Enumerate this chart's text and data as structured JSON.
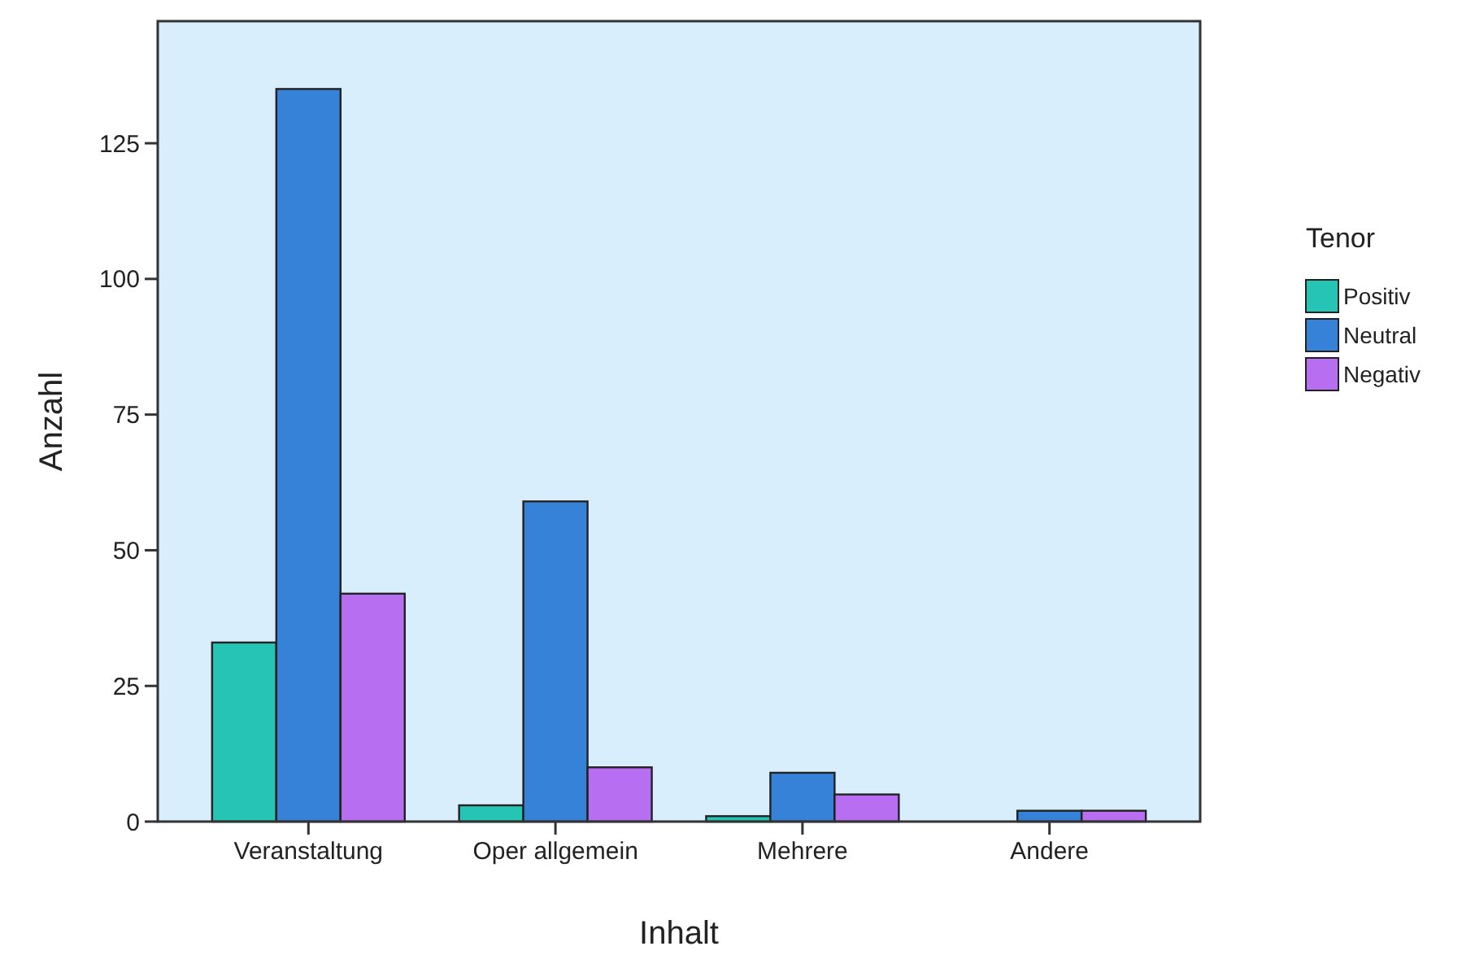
{
  "chart_data": {
    "type": "bar",
    "xlabel": "Inhalt",
    "ylabel": "Anzahl",
    "legend_title": "Tenor",
    "legend": "right",
    "categories": [
      "Veranstaltung",
      "Oper allgemein",
      "Mehrere",
      "Andere"
    ],
    "series": [
      {
        "name": "Positiv",
        "color": "#26c4b4",
        "values": [
          33,
          3,
          1,
          0
        ]
      },
      {
        "name": "Neutral",
        "color": "#3582d8",
        "values": [
          135,
          59,
          9,
          2
        ]
      },
      {
        "name": "Negativ",
        "color": "#b86ef0",
        "values": [
          42,
          10,
          5,
          2
        ]
      }
    ],
    "ylim": [
      0,
      147.5
    ],
    "yticks": [
      0,
      25,
      50,
      75,
      100,
      125
    ]
  }
}
